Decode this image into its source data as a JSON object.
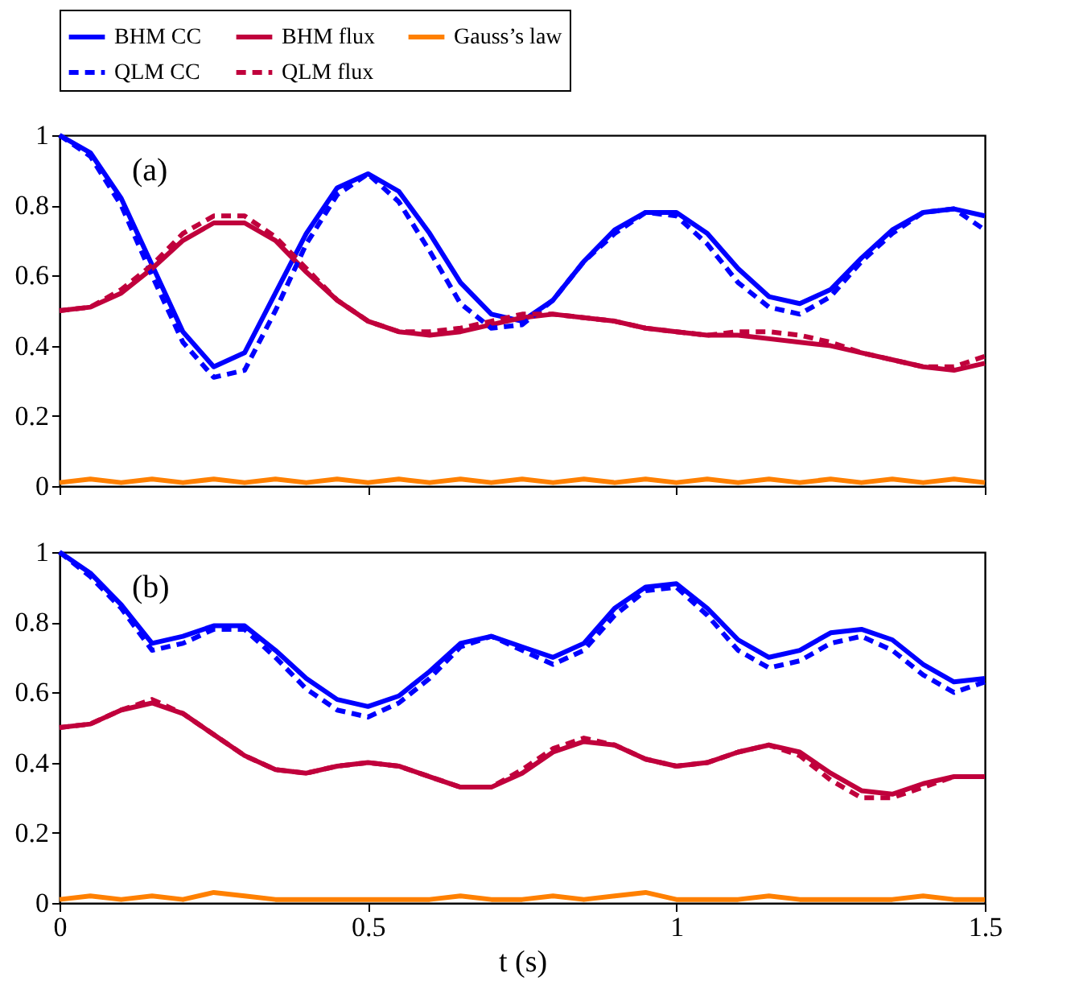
{
  "chart_data": [
    {
      "type": "line",
      "annotations": [
        "(a)"
      ],
      "legend": "top",
      "grid": false,
      "tick_labels": "y",
      "x": [
        0,
        0.05,
        0.1,
        0.15,
        0.2,
        0.25,
        0.3,
        0.35,
        0.4,
        0.45,
        0.5,
        0.55,
        0.6,
        0.65,
        0.7,
        0.75,
        0.8,
        0.85,
        0.9,
        0.95,
        1.0,
        1.05,
        1.1,
        1.15,
        1.2,
        1.25,
        1.3,
        1.35,
        1.4,
        1.45,
        1.5
      ],
      "xlim": [
        0,
        1.5
      ],
      "xticks": [
        0,
        0.5,
        1,
        1.5
      ],
      "ylim": [
        0,
        1
      ],
      "yticks": [
        0,
        0.2,
        0.4,
        0.6,
        0.8,
        1
      ],
      "series": [
        {
          "name": "BHM CC",
          "color": "#0000ff",
          "line_style": "solid",
          "values": [
            1.0,
            0.95,
            0.82,
            0.63,
            0.44,
            0.34,
            0.38,
            0.55,
            0.72,
            0.85,
            0.89,
            0.84,
            0.72,
            0.58,
            0.49,
            0.47,
            0.53,
            0.64,
            0.73,
            0.78,
            0.78,
            0.72,
            0.62,
            0.54,
            0.52,
            0.56,
            0.65,
            0.73,
            0.78,
            0.79,
            0.77
          ]
        },
        {
          "name": "BHM flux",
          "color": "#c0003c",
          "line_style": "solid",
          "values": [
            0.5,
            0.51,
            0.55,
            0.62,
            0.7,
            0.75,
            0.75,
            0.7,
            0.61,
            0.53,
            0.47,
            0.44,
            0.43,
            0.44,
            0.46,
            0.48,
            0.49,
            0.48,
            0.47,
            0.45,
            0.44,
            0.43,
            0.43,
            0.42,
            0.41,
            0.4,
            0.38,
            0.36,
            0.34,
            0.33,
            0.35
          ]
        },
        {
          "name": "Gauss’s law",
          "color": "#ff8000",
          "line_style": "solid",
          "values": [
            0.01,
            0.02,
            0.01,
            0.02,
            0.01,
            0.02,
            0.01,
            0.02,
            0.01,
            0.02,
            0.01,
            0.02,
            0.01,
            0.02,
            0.01,
            0.02,
            0.01,
            0.02,
            0.01,
            0.02,
            0.01,
            0.02,
            0.01,
            0.02,
            0.01,
            0.02,
            0.01,
            0.02,
            0.01,
            0.02,
            0.01
          ]
        },
        {
          "name": "QLM CC",
          "color": "#0000ff",
          "line_style": "dashed",
          "values": [
            1.0,
            0.94,
            0.8,
            0.6,
            0.41,
            0.31,
            0.33,
            0.5,
            0.69,
            0.83,
            0.89,
            0.81,
            0.67,
            0.52,
            0.45,
            0.46,
            0.53,
            0.64,
            0.72,
            0.78,
            0.77,
            0.69,
            0.58,
            0.51,
            0.49,
            0.54,
            0.64,
            0.72,
            0.78,
            0.79,
            0.73
          ]
        },
        {
          "name": "QLM flux",
          "color": "#c0003c",
          "line_style": "dashed",
          "values": [
            0.5,
            0.51,
            0.56,
            0.63,
            0.72,
            0.77,
            0.77,
            0.71,
            0.62,
            0.53,
            0.47,
            0.44,
            0.44,
            0.45,
            0.47,
            0.49,
            0.49,
            0.48,
            0.47,
            0.45,
            0.44,
            0.43,
            0.44,
            0.44,
            0.43,
            0.41,
            0.38,
            0.36,
            0.34,
            0.34,
            0.37
          ]
        }
      ]
    },
    {
      "type": "line",
      "annotations": [
        "(b)"
      ],
      "legend": "top",
      "grid": false,
      "xlabel": "t (s)",
      "x": [
        0,
        0.05,
        0.1,
        0.15,
        0.2,
        0.25,
        0.3,
        0.35,
        0.4,
        0.45,
        0.5,
        0.55,
        0.6,
        0.65,
        0.7,
        0.75,
        0.8,
        0.85,
        0.9,
        0.95,
        1.0,
        1.05,
        1.1,
        1.15,
        1.2,
        1.25,
        1.3,
        1.35,
        1.4,
        1.45,
        1.5
      ],
      "xlim": [
        0,
        1.5
      ],
      "xticks": [
        0,
        0.5,
        1,
        1.5
      ],
      "ylim": [
        0,
        1
      ],
      "yticks": [
        0,
        0.2,
        0.4,
        0.6,
        0.8,
        1
      ],
      "series": [
        {
          "name": "BHM CC",
          "color": "#0000ff",
          "line_style": "solid",
          "values": [
            1.0,
            0.94,
            0.85,
            0.74,
            0.76,
            0.79,
            0.79,
            0.72,
            0.64,
            0.58,
            0.56,
            0.59,
            0.66,
            0.74,
            0.76,
            0.73,
            0.7,
            0.74,
            0.84,
            0.9,
            0.91,
            0.84,
            0.75,
            0.7,
            0.72,
            0.77,
            0.78,
            0.75,
            0.68,
            0.63,
            0.64
          ]
        },
        {
          "name": "BHM flux",
          "color": "#c0003c",
          "line_style": "solid",
          "values": [
            0.5,
            0.51,
            0.55,
            0.57,
            0.54,
            0.48,
            0.42,
            0.38,
            0.37,
            0.39,
            0.4,
            0.39,
            0.36,
            0.33,
            0.33,
            0.37,
            0.43,
            0.46,
            0.45,
            0.41,
            0.39,
            0.4,
            0.43,
            0.45,
            0.43,
            0.37,
            0.32,
            0.31,
            0.34,
            0.36,
            0.36
          ]
        },
        {
          "name": "Gauss’s law",
          "color": "#ff8000",
          "line_style": "solid",
          "values": [
            0.01,
            0.02,
            0.01,
            0.02,
            0.01,
            0.03,
            0.02,
            0.01,
            0.01,
            0.01,
            0.01,
            0.01,
            0.01,
            0.02,
            0.01,
            0.01,
            0.02,
            0.01,
            0.02,
            0.03,
            0.01,
            0.01,
            0.01,
            0.02,
            0.01,
            0.01,
            0.01,
            0.01,
            0.02,
            0.01,
            0.01
          ]
        },
        {
          "name": "QLM CC",
          "color": "#0000ff",
          "line_style": "dashed",
          "values": [
            1.0,
            0.93,
            0.84,
            0.72,
            0.74,
            0.78,
            0.78,
            0.7,
            0.61,
            0.55,
            0.53,
            0.57,
            0.64,
            0.73,
            0.76,
            0.72,
            0.68,
            0.72,
            0.82,
            0.89,
            0.9,
            0.82,
            0.72,
            0.67,
            0.69,
            0.74,
            0.76,
            0.72,
            0.65,
            0.6,
            0.63
          ]
        },
        {
          "name": "QLM flux",
          "color": "#c0003c",
          "line_style": "dashed",
          "values": [
            0.5,
            0.51,
            0.55,
            0.58,
            0.54,
            0.48,
            0.42,
            0.38,
            0.37,
            0.39,
            0.4,
            0.39,
            0.36,
            0.33,
            0.33,
            0.38,
            0.44,
            0.47,
            0.45,
            0.41,
            0.39,
            0.4,
            0.43,
            0.45,
            0.42,
            0.35,
            0.3,
            0.3,
            0.33,
            0.36,
            0.36
          ]
        }
      ]
    }
  ]
}
